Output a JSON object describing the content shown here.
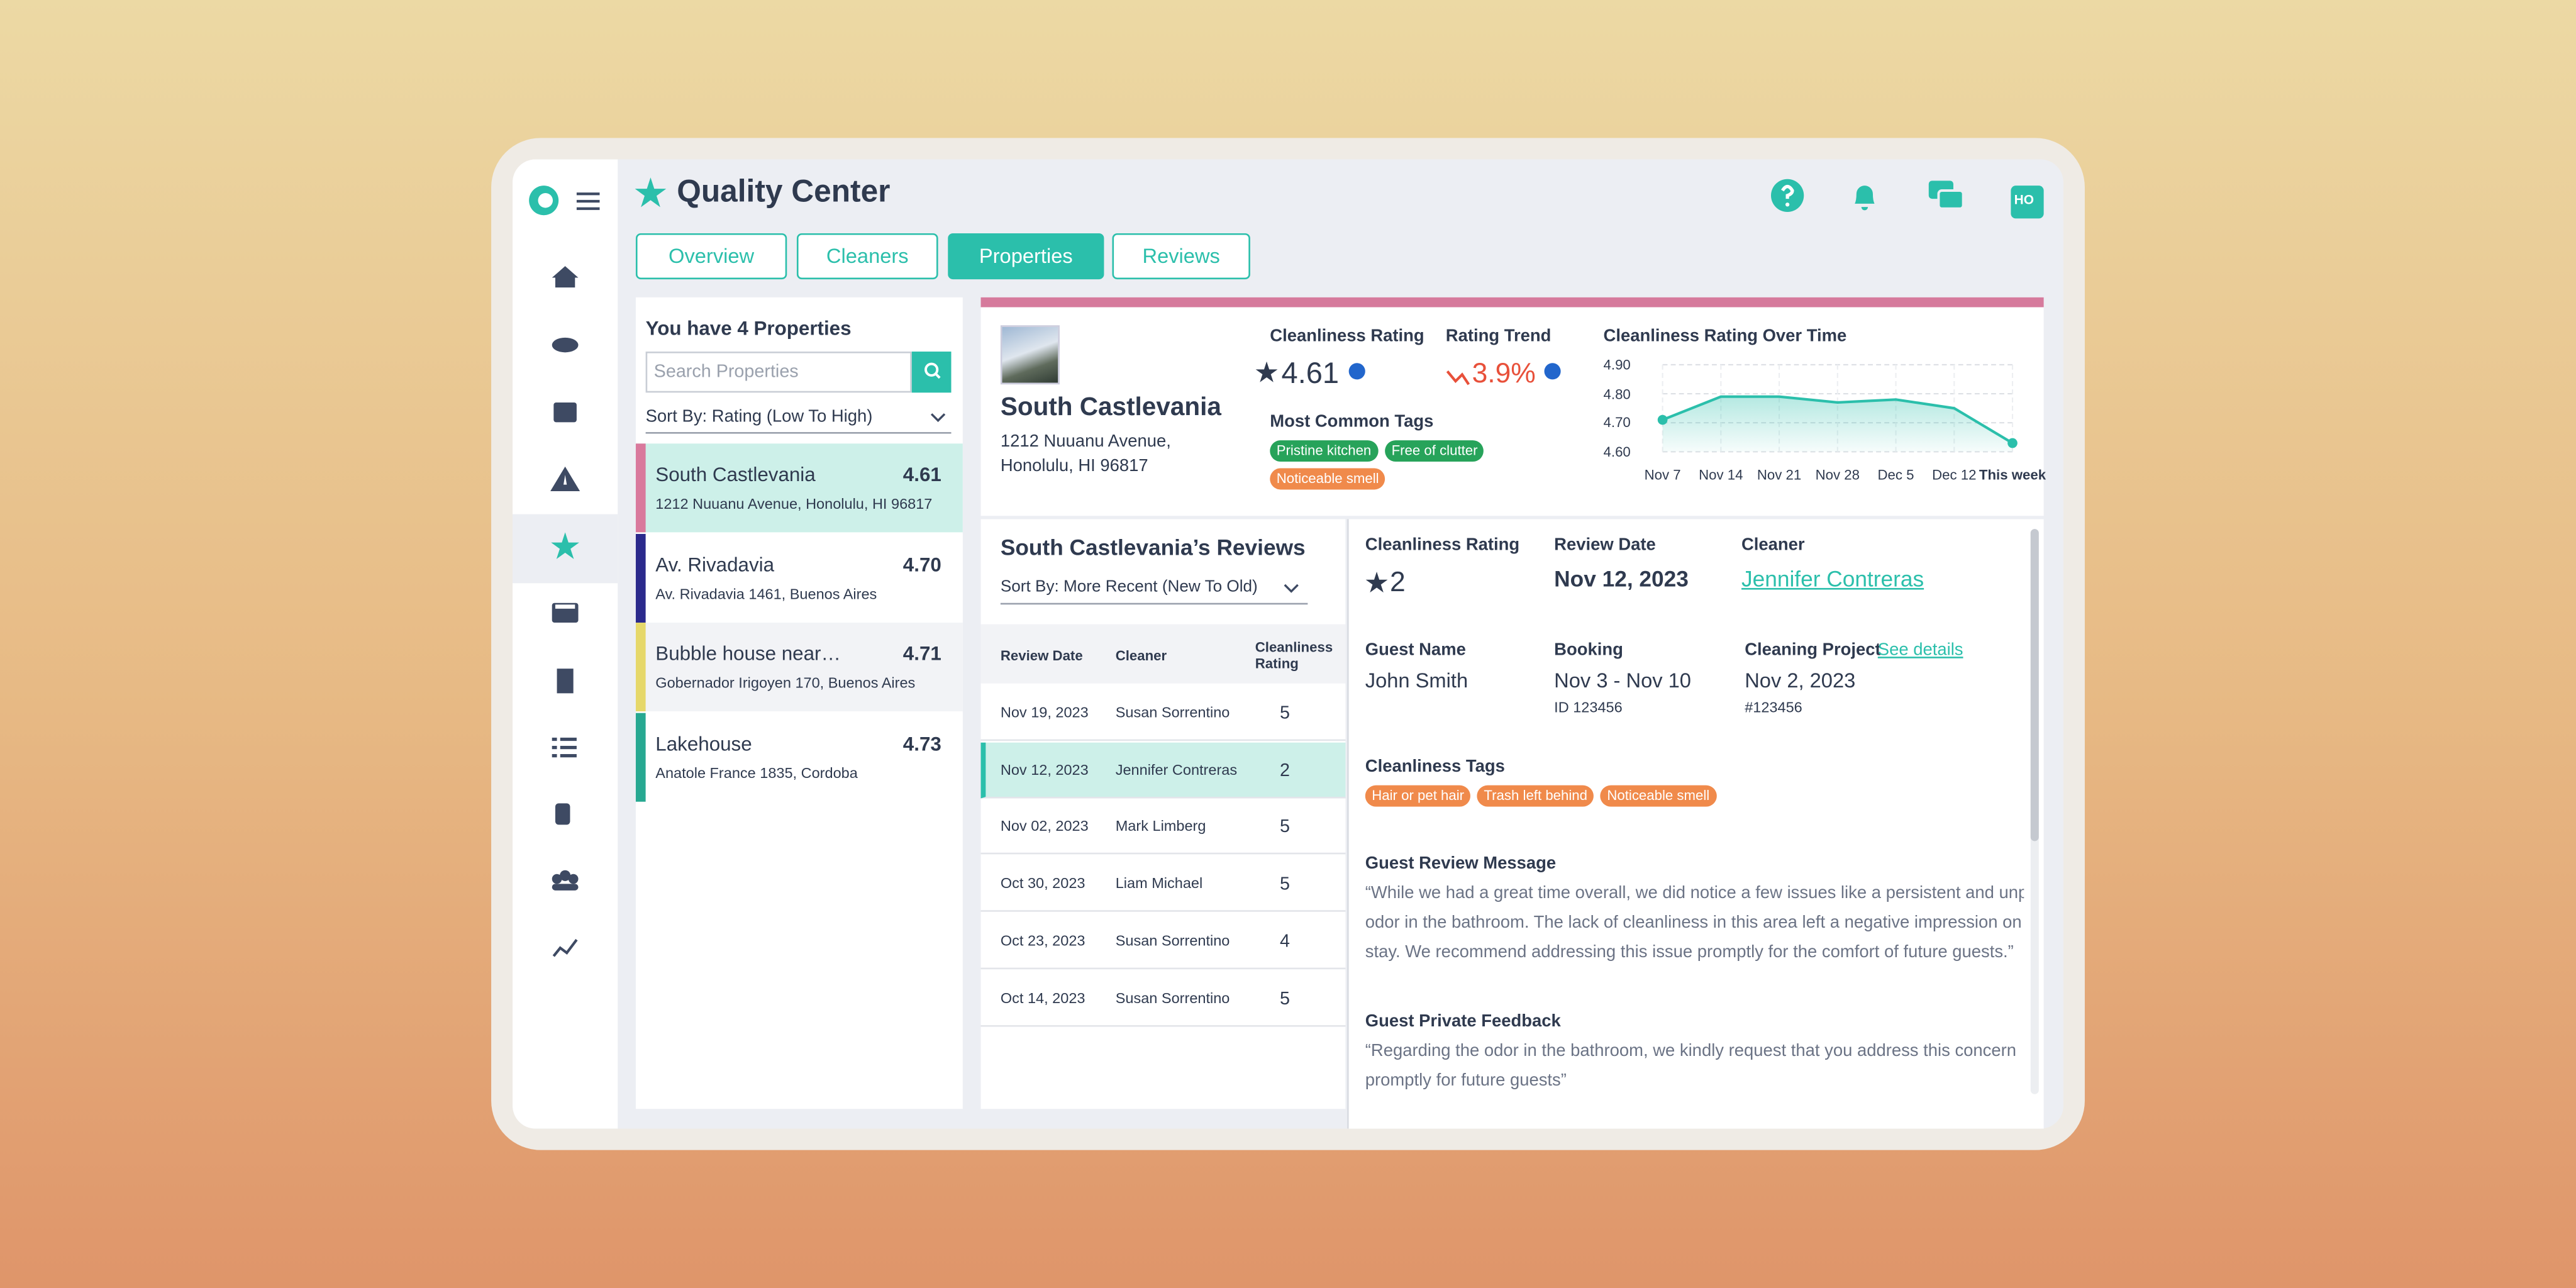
{
  "header": {
    "title": "Quality Center",
    "avatar": "HO"
  },
  "tabs": {
    "items": [
      "Overview",
      "Cleaners",
      "Properties",
      "Reviews"
    ],
    "active": 2
  },
  "properties": {
    "title": "You have 4 Properties",
    "search_placeholder": "Search Properties",
    "sort": "Sort By: Rating (Low To High)",
    "selected": 0,
    "items": [
      {
        "name": "South Castlevania",
        "address": "1212 Nuuanu Avenue, Honolulu, HI 96817",
        "rating": "4.61",
        "color": "#d9799c"
      },
      {
        "name": "Av. Rivadavia",
        "address": "Av. Rivadavia 1461, Buenos Aires",
        "rating": "4.70",
        "color": "#2b2a8c"
      },
      {
        "name": "Bubble house near…",
        "address": "Gobernador Irigoyen 170, Buenos Aires",
        "rating": "4.71",
        "color": "#e6d86a"
      },
      {
        "name": "Lakehouse",
        "address": "Anatole France 1835, Cordoba",
        "rating": "4.73",
        "color": "#27a891"
      }
    ]
  },
  "summary": {
    "name": "South Castlevania",
    "address": [
      "1212 Nuuanu Avenue,",
      "Honolulu, HI 96817"
    ],
    "rating_label": "Cleanliness Rating",
    "rating": "4.61",
    "trend_label": "Rating Trend",
    "trend": "3.9%",
    "tags_label": "Most Common Tags",
    "tags": [
      {
        "text": "Pristine kitchen",
        "color": "#27a35a"
      },
      {
        "text": "Free of clutter",
        "color": "#27a35a"
      },
      {
        "text": "Noticeable smell",
        "color": "#f08a4b"
      }
    ],
    "chart": {
      "type": "line",
      "title": "Cleanliness Rating Over Time",
      "categories": [
        "Nov 7",
        "Nov 14",
        "Nov 21",
        "Nov 28",
        "Dec 5",
        "Dec 12",
        "This week"
      ],
      "values": [
        4.71,
        4.79,
        4.79,
        4.77,
        4.78,
        4.75,
        4.63
      ],
      "color": "#2bbfab",
      "ylim": [
        4.6,
        4.9
      ],
      "yticks": [
        {
          "value": 4.9,
          "label": "4.90"
        },
        {
          "value": 4.8,
          "label": "4.80"
        },
        {
          "value": 4.7,
          "label": "4.70"
        },
        {
          "value": 4.6,
          "label": "4.60"
        }
      ],
      "grid": true
    }
  },
  "reviews": {
    "title": "South Castlevania’s Reviews",
    "sort": "Sort By: More Recent (New To Old)",
    "columns": [
      "Review Date",
      "Cleaner",
      "Cleanliness Rating"
    ],
    "selected": 1,
    "rows": [
      {
        "date": "Nov 19, 2023",
        "cleaner": "Susan Sorrentino",
        "rating": "5",
        "flag": false
      },
      {
        "date": "Nov 12, 2023",
        "cleaner": "Jennifer Contreras",
        "rating": "2",
        "flag": true
      },
      {
        "date": "Nov 02, 2023",
        "cleaner": "Mark Limberg",
        "rating": "5",
        "flag": false
      },
      {
        "date": "Oct 30, 2023",
        "cleaner": "Liam Michael",
        "rating": "5",
        "flag": false
      },
      {
        "date": "Oct 23, 2023",
        "cleaner": "Susan Sorrentino",
        "rating": "4",
        "flag": true
      },
      {
        "date": "Oct 14, 2023",
        "cleaner": "Susan Sorrentino",
        "rating": "5",
        "flag": false
      }
    ]
  },
  "review_detail": {
    "rating_label": "Cleanliness Rating",
    "rating": "2",
    "date_label": "Review Date",
    "date": "Nov 12, 2023",
    "cleaner_label": "Cleaner",
    "cleaner": "Jennifer Contreras",
    "guest_label": "Guest Name",
    "guest": "John Smith",
    "booking_label": "Booking",
    "booking": "Nov 3 - Nov 10",
    "booking_id": "ID 123456",
    "project_label": "Cleaning Project",
    "project_link": "See details",
    "project_date": "Nov 2, 2023",
    "project_id": "#123456",
    "tags_label": "Cleanliness Tags",
    "tags": [
      "Hair or pet hair",
      "Trash left behind",
      "Noticeable smell"
    ],
    "tag_color": "#f08a4b",
    "message_label": "Guest Review Message",
    "message": [
      "“While we had a great time overall, we did notice a few issues like a persistent and unplea",
      "odor in the bathroom. The lack of cleanliness in this area left a negative impression on ou",
      "stay. We recommend addressing this issue promptly for the comfort of future guests.”"
    ],
    "feedback_label": "Guest Private Feedback",
    "feedback": [
      "“Regarding the odor in the bathroom, we kindly request that you address this concern",
      "promptly for future guests”"
    ]
  }
}
